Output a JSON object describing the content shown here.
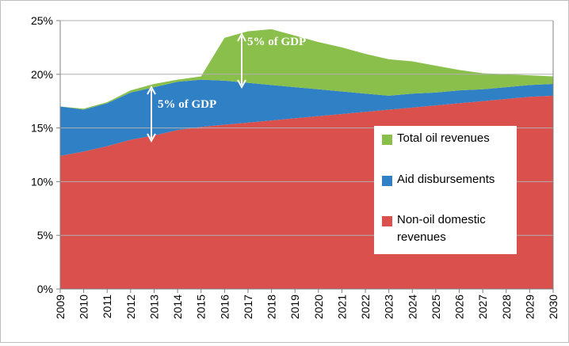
{
  "chart_data": {
    "type": "stacked-area",
    "categories": [
      "2009",
      "2010",
      "2011",
      "2012",
      "2013",
      "2014",
      "2015",
      "2016",
      "2017",
      "2018",
      "2019",
      "2020",
      "2021",
      "2022",
      "2023",
      "2024",
      "2025",
      "2026",
      "2027",
      "2028",
      "2029",
      "2030"
    ],
    "series": [
      {
        "name": "Non-oil domestic revenues",
        "color": "#d9504c",
        "values": [
          12.4,
          12.8,
          13.3,
          13.9,
          14.3,
          14.8,
          15.1,
          15.3,
          15.5,
          15.7,
          15.9,
          16.1,
          16.3,
          16.5,
          16.7,
          16.9,
          17.1,
          17.3,
          17.5,
          17.7,
          17.9,
          18.0
        ]
      },
      {
        "name": "Aid disbursements",
        "color": "#2f80c4",
        "values": [
          4.6,
          3.9,
          4.0,
          4.4,
          4.5,
          4.5,
          4.4,
          4.1,
          3.7,
          3.3,
          2.9,
          2.5,
          2.1,
          1.7,
          1.3,
          1.3,
          1.2,
          1.2,
          1.1,
          1.1,
          1.1,
          1.1
        ]
      },
      {
        "name": "Total oil revenues",
        "color": "#8bbf4c",
        "values": [
          0,
          0.1,
          0.1,
          0.2,
          0.3,
          0.2,
          0.3,
          4.0,
          4.8,
          5.2,
          4.8,
          4.4,
          4.1,
          3.7,
          3.4,
          3.0,
          2.5,
          1.9,
          1.5,
          1.2,
          0.9,
          0.7
        ]
      }
    ],
    "ylim": [
      0,
      25
    ],
    "yticks": [
      {
        "value": 0,
        "label": "0%"
      },
      {
        "value": 5,
        "label": "5%"
      },
      {
        "value": 10,
        "label": "10%"
      },
      {
        "value": 15,
        "label": "15%"
      },
      {
        "value": 20,
        "label": "20%"
      },
      {
        "value": 25,
        "label": "25%"
      }
    ],
    "grid": true,
    "annotations": [
      "5% of GDP",
      "5% of GDP"
    ]
  }
}
